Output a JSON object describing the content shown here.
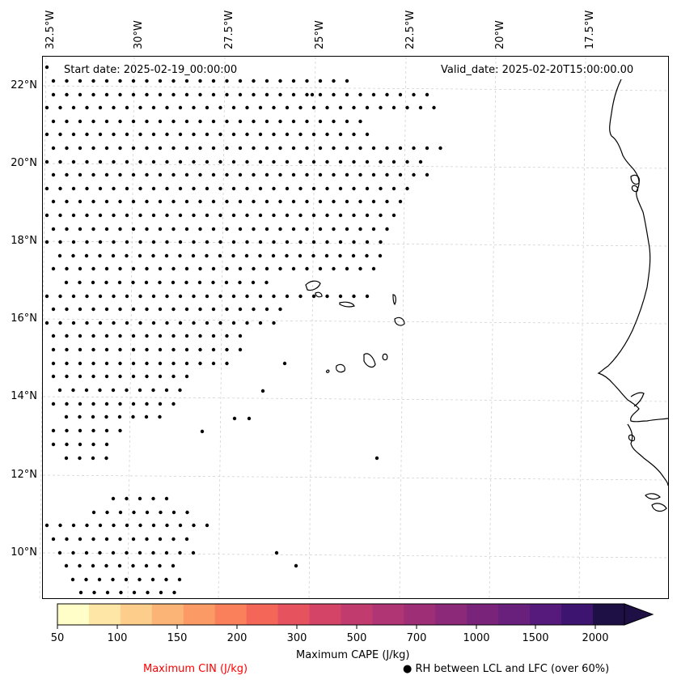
{
  "map": {
    "start_date": "Start date: 2025-02-19_00:00:00",
    "valid_date": "Valid_date: 2025-02-20T15:00:00.00",
    "lon_labels": [
      "32.5°W",
      "30°W",
      "27.5°W",
      "25°W",
      "22.5°W",
      "20°W",
      "17.5°W"
    ],
    "lat_labels": [
      "22°N",
      "20°N",
      "18°N",
      "16°N",
      "14°N",
      "12°N",
      "10°N"
    ]
  },
  "colorbar": {
    "label": "Maximum CAPE (J/kg)",
    "ticks": [
      "50",
      "100",
      "150",
      "200",
      "300",
      "500",
      "700",
      "1000",
      "1500",
      "2000"
    ],
    "colors": [
      "#fffec8",
      "#fee6a6",
      "#fdcd8c",
      "#fcb376",
      "#fb9a65",
      "#f9805b",
      "#f36658",
      "#e6525e",
      "#d44467",
      "#c23b6f",
      "#b03574",
      "#9e2f77",
      "#8c2979",
      "#7a237b",
      "#68207c",
      "#551a7c",
      "#3d1470",
      "#1e0f45"
    ]
  },
  "legend": {
    "cin_label": "Maximum CIN (J/kg)",
    "cin_color": "#ff0000",
    "rh_label": "RH between LCL and LFC (over 60%)",
    "rh_marker": "●"
  }
}
